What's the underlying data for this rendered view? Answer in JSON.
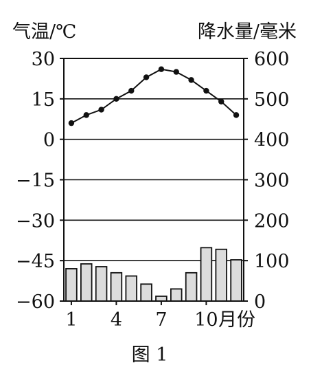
{
  "chart_data": {
    "type": "bar+line",
    "caption": "图 1",
    "x_axis": {
      "unit_label": "月份",
      "ticks": [
        "1",
        "4",
        "7",
        "10"
      ],
      "months": [
        1,
        2,
        3,
        4,
        5,
        6,
        7,
        8,
        9,
        10,
        11,
        12
      ]
    },
    "y_left": {
      "label": "气温/℃",
      "range": [
        -60,
        30
      ],
      "ticks": [
        30,
        15,
        0,
        -15,
        -30,
        -45,
        -60
      ],
      "tick_labels": [
        "30",
        "15",
        "0",
        "−15",
        "−30",
        "−45",
        "−60"
      ]
    },
    "y_right": {
      "label": "降水量/毫米",
      "range": [
        0,
        600
      ],
      "ticks": [
        600,
        500,
        400,
        300,
        200,
        100,
        0
      ],
      "tick_labels": [
        "600",
        "500",
        "400",
        "300",
        "200",
        "100",
        "0"
      ]
    },
    "gridlines": [
      15,
      0,
      -15,
      -30,
      -45
    ],
    "series": [
      {
        "kind": "line",
        "axis": "left",
        "values": [
          6,
          9,
          11,
          15,
          18,
          23,
          26,
          25,
          22,
          18,
          14,
          9
        ]
      },
      {
        "kind": "bar",
        "axis": "right",
        "values": [
          80,
          92,
          85,
          70,
          62,
          42,
          12,
          30,
          70,
          132,
          128,
          102
        ]
      }
    ],
    "colors": {
      "line": "#111111",
      "bar_fill": "#dcdcdc",
      "bar_stroke": "#111111",
      "grid": "#111111"
    }
  }
}
